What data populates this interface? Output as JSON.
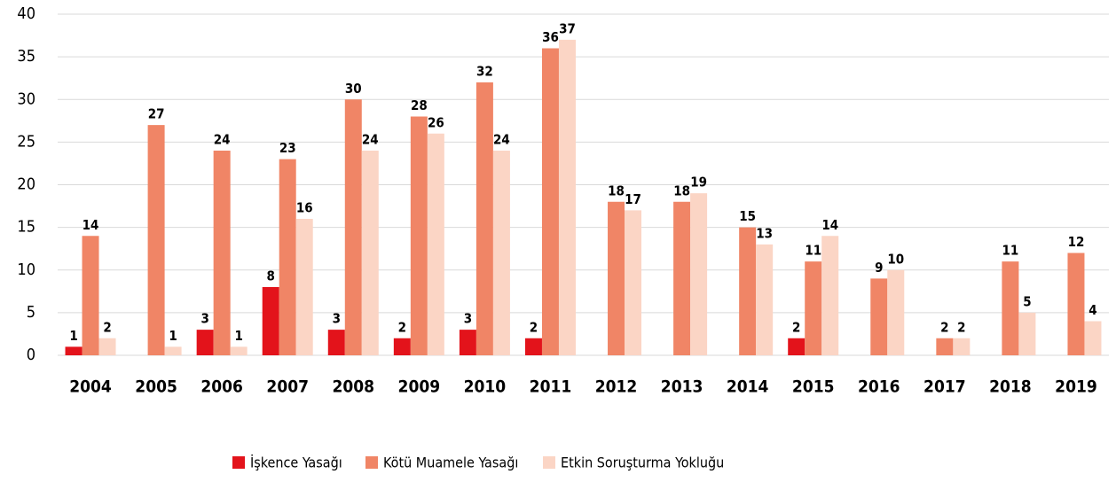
{
  "chart_data": {
    "type": "bar",
    "categories": [
      "2004",
      "2005",
      "2006",
      "2007",
      "2008",
      "2009",
      "2010",
      "2011",
      "2012",
      "2013",
      "2014",
      "2015",
      "2016",
      "2017",
      "2018",
      "2019"
    ],
    "series": [
      {
        "name": "İşkence Yasağı",
        "color": "#e3131b",
        "values": [
          1,
          null,
          3,
          8,
          3,
          2,
          3,
          2,
          null,
          null,
          null,
          2,
          null,
          null,
          null,
          null
        ]
      },
      {
        "name": "Kötü Muamele Yasağı",
        "color": "#f08566",
        "values": [
          14,
          27,
          24,
          23,
          30,
          28,
          32,
          36,
          18,
          18,
          15,
          11,
          9,
          2,
          11,
          12
        ]
      },
      {
        "name": "Etkin Soruşturma Yokluğu",
        "color": "#fbd5c5",
        "values": [
          2,
          1,
          1,
          16,
          24,
          26,
          24,
          37,
          17,
          19,
          13,
          14,
          10,
          2,
          5,
          4
        ]
      }
    ],
    "ylim": [
      0,
      40
    ],
    "yticks": [
      0,
      5,
      10,
      15,
      20,
      25,
      30,
      35,
      40
    ],
    "grid": true,
    "legend": "bottom"
  }
}
